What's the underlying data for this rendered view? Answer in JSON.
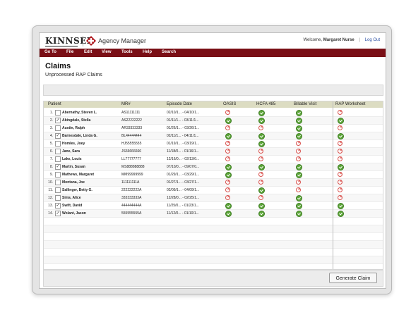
{
  "app": {
    "logo_text": "KINNSER",
    "product_name": "Agency Manager",
    "welcome_prefix": "Welcome,",
    "user_name": "Margaret Nurse",
    "logout_label": "Log Out"
  },
  "menu": [
    "Go To",
    "File",
    "Edit",
    "View",
    "Tools",
    "Help",
    "Search"
  ],
  "page": {
    "title": "Claims",
    "subtitle": "Unprocessed RAP Claims"
  },
  "table": {
    "columns": [
      "Patient",
      "MR#",
      "Episode Date",
      "OASIS",
      "HCFA 485",
      "Billable Visit",
      "RAP Worksheet"
    ],
    "rows": [
      {
        "num": "1.",
        "checked": false,
        "patient": "Abernathy, Steven L.",
        "mr": "AS11111111",
        "episode": "02/10/1... - 04/10/1...",
        "oasis": "err",
        "hcfa": "ok",
        "billable": "ok",
        "rap": "err"
      },
      {
        "num": "2.",
        "checked": true,
        "patient": "Abingdale, Stella",
        "mr": "AS22222222",
        "episode": "01/11/1... - 03/11/1...",
        "oasis": "ok",
        "hcfa": "ok",
        "billable": "ok",
        "rap": "ok"
      },
      {
        "num": "3.",
        "checked": false,
        "patient": "Austin, Ralph",
        "mr": "AR33333333",
        "episode": "01/26/1... - 03/26/1...",
        "oasis": "err",
        "hcfa": "err",
        "billable": "ok",
        "rap": "err"
      },
      {
        "num": "4.",
        "checked": true,
        "patient": "Barnesdale, Linda G.",
        "mr": "BL44444444",
        "episode": "02/11/1... - 04/11/1...",
        "oasis": "ok",
        "hcfa": "ok",
        "billable": "ok",
        "rap": "ok"
      },
      {
        "num": "5.",
        "checked": false,
        "patient": "Homles, Joey",
        "mr": "HJ55555555",
        "episode": "01/19/1... - 03/19/1...",
        "oasis": "err",
        "hcfa": "ok",
        "billable": "err",
        "rap": "err"
      },
      {
        "num": "6.",
        "checked": false,
        "patient": "Jane, Sara",
        "mr": "JS66666666",
        "episode": "11/18/0... - 01/16/1...",
        "oasis": "err",
        "hcfa": "err",
        "billable": "err",
        "rap": "err"
      },
      {
        "num": "7.",
        "checked": false,
        "patient": "Lake, Louis",
        "mr": "LL77777777",
        "episode": "12/16/0... - 02/13/0...",
        "oasis": "err",
        "hcfa": "err",
        "billable": "err",
        "rap": "err"
      },
      {
        "num": "8.",
        "checked": true,
        "patient": "Martin, Susan",
        "mr": "MS888888888",
        "episode": "07/10/0... - 09/07/0...",
        "oasis": "ok",
        "hcfa": "ok",
        "billable": "ok",
        "rap": "ok"
      },
      {
        "num": "9.",
        "checked": false,
        "patient": "Mathews, Margaret",
        "mr": "MM99999999",
        "episode": "01/29/1... - 03/29/1...",
        "oasis": "ok",
        "hcfa": "err",
        "billable": "ok",
        "rap": "err"
      },
      {
        "num": "10.",
        "checked": false,
        "patient": "Montana, Joe",
        "mr": "111111111A",
        "episode": "01/27/1... - 03/27/1...",
        "oasis": "err",
        "hcfa": "err",
        "billable": "err",
        "rap": "err"
      },
      {
        "num": "11.",
        "checked": false,
        "patient": "Sallinger, Betty G.",
        "mr": "222222222A",
        "episode": "02/09/1... - 04/09/1...",
        "oasis": "err",
        "hcfa": "ok",
        "billable": "err",
        "rap": "err"
      },
      {
        "num": "12.",
        "checked": false,
        "patient": "Sims, Alice",
        "mr": "333333333A",
        "episode": "12/28/0... - 02/25/1...",
        "oasis": "err",
        "hcfa": "err",
        "billable": "ok",
        "rap": "err"
      },
      {
        "num": "13.",
        "checked": true,
        "patient": "Swift, David",
        "mr": "444444444A",
        "episode": "11/25/0... - 01/23/1...",
        "oasis": "ok",
        "hcfa": "ok",
        "billable": "ok",
        "rap": "ok"
      },
      {
        "num": "14.",
        "checked": true,
        "patient": "Wolant, Jason",
        "mr": "555555555A",
        "episode": "11/12/0... - 01/10/1...",
        "oasis": "ok",
        "hcfa": "ok",
        "billable": "ok",
        "rap": "ok"
      }
    ]
  },
  "actions": {
    "generate_label": "Generate Claim"
  },
  "colors": {
    "menubar": "#7a0f16",
    "header_row": "#dcdcc2",
    "ok": "#5ea63a",
    "error": "#d9534f",
    "link": "#2a4fa3"
  },
  "icons": {
    "ok": "green-check-icon",
    "error": "red-x-icon",
    "product": "red-cross-diamond-icon"
  }
}
